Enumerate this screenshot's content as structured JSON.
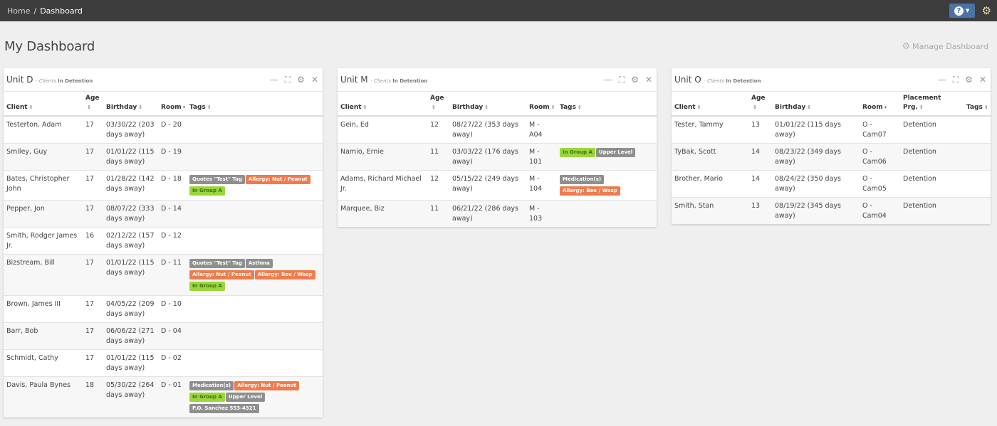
{
  "breadcrumb": {
    "home": "Home",
    "separator": "/",
    "current": "Dashboard"
  },
  "header": {
    "help_icon": "question-circle-icon",
    "settings_icon": "gear-icon"
  },
  "page": {
    "title": "My Dashboard",
    "manage_label": "Manage Dashboard"
  },
  "tag_colors": {
    "gray": "#8f8f8f",
    "orange": "#f07b4c",
    "green": "#9bd63b"
  },
  "widgets": [
    {
      "title": "Unit D",
      "subtitle_prefix": "· Clients",
      "subtitle_status": "In Detention",
      "columns": [
        "Client",
        "Age",
        "Birthday",
        "Room",
        "Tags"
      ],
      "rows": [
        {
          "client": "Testerton, Adam",
          "age": "17",
          "birthday": "03/30/22 (203 days away)",
          "room": "D - 20",
          "tags": []
        },
        {
          "client": "Smiley, Guy",
          "age": "17",
          "birthday": "01/01/22 (115 days away)",
          "room": "D - 19",
          "tags": []
        },
        {
          "client": "Bates, Christopher John",
          "age": "17",
          "birthday": "01/28/22 (142 days away)",
          "room": "D - 18",
          "tags": [
            {
              "label": "Quotes \"Test\" Tag",
              "color": "gray"
            },
            {
              "label": "Allergy: Nut / Peanut",
              "color": "orange"
            },
            {
              "label": "In Group A",
              "color": "green"
            }
          ]
        },
        {
          "client": "Pepper, Jon",
          "age": "17",
          "birthday": "08/07/22 (333 days away)",
          "room": "D - 14",
          "tags": []
        },
        {
          "client": "Smith, Rodger James Jr.",
          "age": "16",
          "birthday": "02/12/22 (157 days away)",
          "room": "D - 12",
          "tags": []
        },
        {
          "client": "Bizstream, Bill",
          "age": "17",
          "birthday": "01/01/22 (115 days away)",
          "room": "D - 11",
          "tags": [
            {
              "label": "Quotes \"Test\" Tag",
              "color": "gray"
            },
            {
              "label": "Asthma",
              "color": "gray"
            },
            {
              "label": "Allergy: Nut / Peanut",
              "color": "orange"
            },
            {
              "label": "Allergy: Bee / Wasp",
              "color": "orange"
            },
            {
              "label": "In Group A",
              "color": "green"
            }
          ]
        },
        {
          "client": "Brown, James III",
          "age": "17",
          "birthday": "04/05/22 (209 days away)",
          "room": "D - 10",
          "tags": []
        },
        {
          "client": "Barr, Bob",
          "age": "17",
          "birthday": "06/06/22 (271 days away)",
          "room": "D - 04",
          "tags": []
        },
        {
          "client": "Schmidt, Cathy",
          "age": "17",
          "birthday": "01/01/22 (115 days away)",
          "room": "D - 02",
          "tags": []
        },
        {
          "client": "Davis, Paula Bynes",
          "age": "18",
          "birthday": "05/30/22 (264 days away)",
          "room": "D - 01",
          "tags": [
            {
              "label": "Medication(s)",
              "color": "gray"
            },
            {
              "label": "Allergy: Nut / Peanut",
              "color": "orange"
            },
            {
              "label": "In Group A",
              "color": "green"
            },
            {
              "label": "Upper Level",
              "color": "gray"
            },
            {
              "label": "P.O. Sanchez 553-4321",
              "color": "gray"
            }
          ]
        }
      ]
    },
    {
      "title": "Unit M",
      "subtitle_prefix": "· Clients",
      "subtitle_status": "In Detention",
      "columns": [
        "Client",
        "Age",
        "Birthday",
        "Room",
        "Tags"
      ],
      "rows": [
        {
          "client": "Gein, Ed",
          "age": "12",
          "birthday": "08/27/22 (353 days away)",
          "room": "M - A04",
          "tags": []
        },
        {
          "client": "Namio, Ernie",
          "age": "11",
          "birthday": "03/03/22 (176 days away)",
          "room": "M - 101",
          "tags": [
            {
              "label": "In Group A",
              "color": "green"
            },
            {
              "label": "Upper Level",
              "color": "gray"
            }
          ]
        },
        {
          "client": "Adams, Richard Michael Jr.",
          "age": "12",
          "birthday": "05/15/22 (249 days away)",
          "room": "M - 104",
          "tags": [
            {
              "label": "Medication(s)",
              "color": "gray"
            },
            {
              "label": "Allergy: Bee / Wasp",
              "color": "orange"
            }
          ]
        },
        {
          "client": "Marquee, Biz",
          "age": "11",
          "birthday": "06/21/22 (286 days away)",
          "room": "M - 103",
          "tags": []
        }
      ]
    },
    {
      "title": "Unit O",
      "subtitle_prefix": "· Clients",
      "subtitle_status": "In Detention",
      "columns": [
        "Client",
        "Age",
        "Birthday",
        "Room",
        "Placement Prg.",
        "Tags"
      ],
      "rows": [
        {
          "client": "Tester, Tammy",
          "age": "13",
          "birthday": "01/01/22 (115 days away)",
          "room": "O - Cam07",
          "placement": "Detention",
          "tags": []
        },
        {
          "client": "TyBak, Scott",
          "age": "14",
          "birthday": "08/23/22 (349 days away)",
          "room": "O - Cam06",
          "placement": "Detention",
          "tags": []
        },
        {
          "client": "Brother, Mario",
          "age": "14",
          "birthday": "08/24/22 (350 days away)",
          "room": "O - Cam05",
          "placement": "Detention",
          "tags": []
        },
        {
          "client": "Smith, Stan",
          "age": "13",
          "birthday": "08/19/22 (345 days away)",
          "room": "O - Cam04",
          "placement": "Detention",
          "tags": []
        }
      ]
    }
  ]
}
